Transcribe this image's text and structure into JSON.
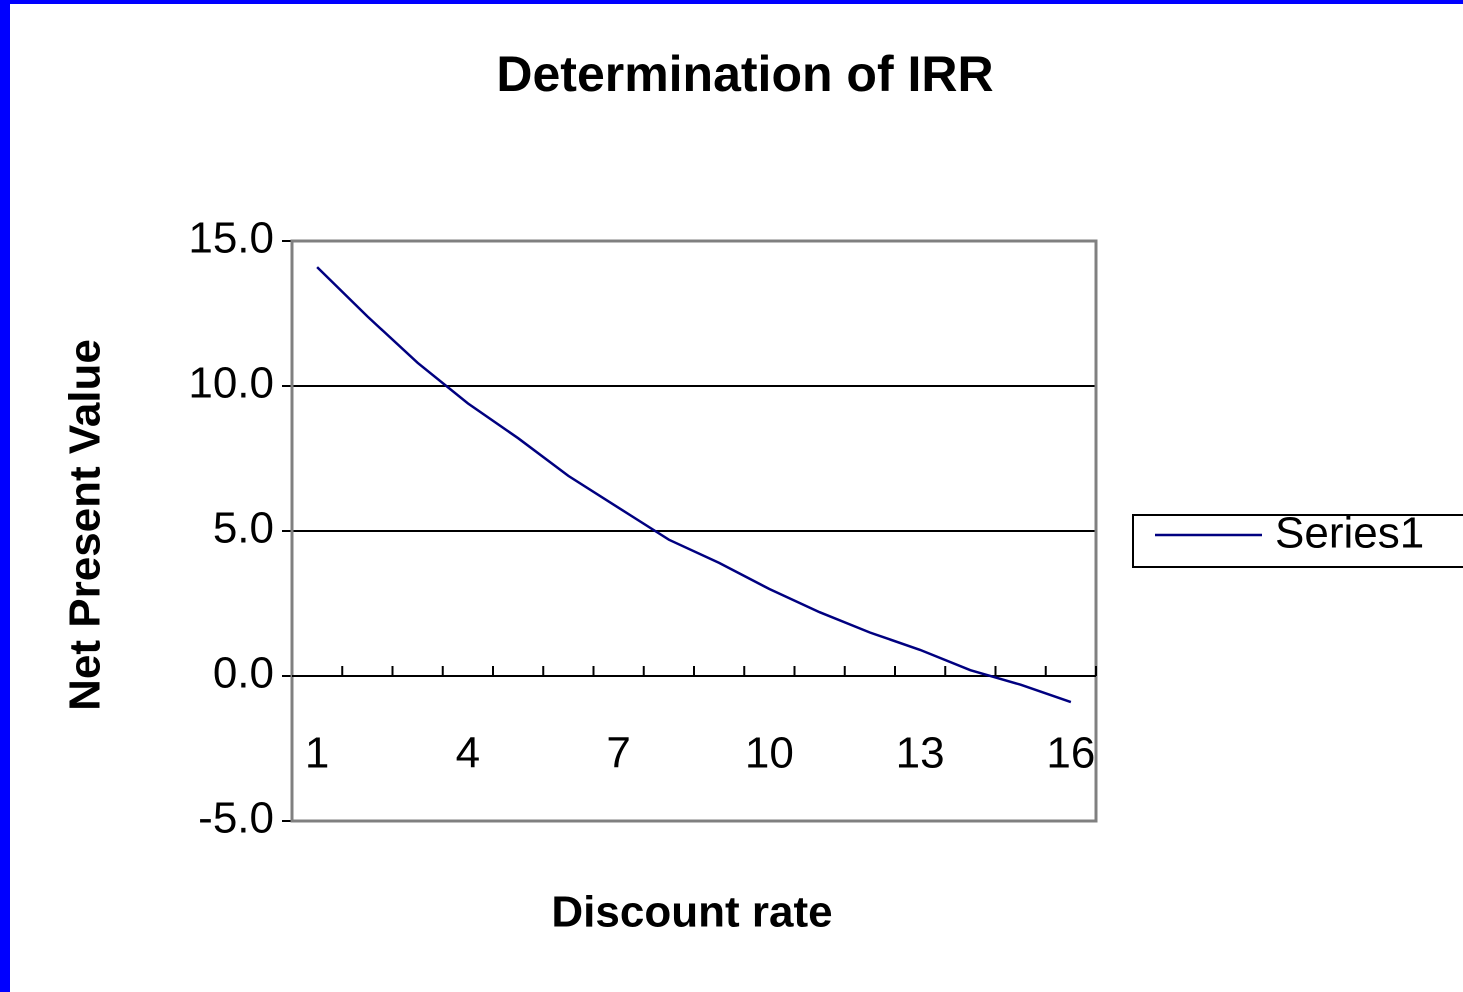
{
  "chart_data": {
    "type": "line",
    "title": "Determination of IRR",
    "x_label": "Discount rate",
    "y_label": "Net Present Value",
    "categories": [
      1,
      null,
      null,
      4,
      null,
      null,
      7,
      null,
      null,
      10,
      null,
      null,
      13,
      null,
      null,
      16
    ],
    "series": [
      {
        "name": "Series1",
        "color": "#000080",
        "values": [
          14.1,
          12.4,
          10.8,
          9.4,
          8.2,
          6.9,
          5.8,
          4.7,
          3.9,
          3.0,
          2.2,
          1.5,
          0.9,
          0.2,
          -0.3,
          -0.9
        ]
      }
    ],
    "ylim": [
      -5,
      15
    ],
    "yticks": [
      {
        "value": -5,
        "label": "-5.0"
      },
      {
        "value": 0,
        "label": "0.0"
      },
      {
        "value": 5,
        "label": "5.0"
      },
      {
        "value": 10,
        "label": "10.0"
      },
      {
        "value": 15,
        "label": "15.0"
      }
    ],
    "grid": true,
    "legend": "right"
  }
}
